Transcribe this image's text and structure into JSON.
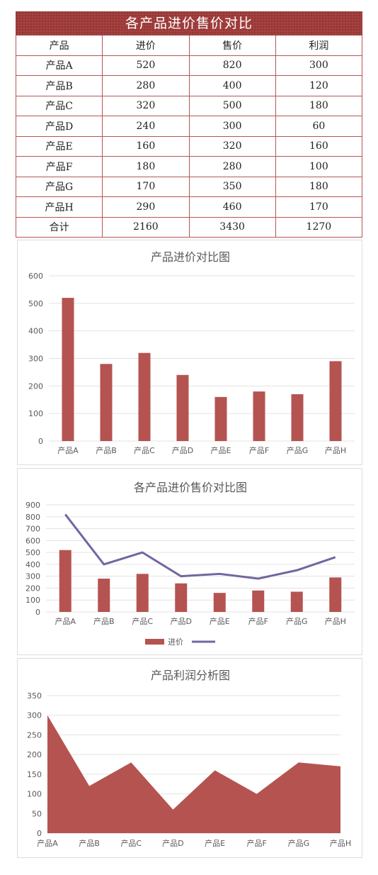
{
  "table": {
    "title": "各产品进价售价对比",
    "headers": [
      "产品",
      "进价",
      "售价",
      "利润"
    ],
    "rows": [
      [
        "产品A",
        "520",
        "820",
        "300"
      ],
      [
        "产品B",
        "280",
        "400",
        "120"
      ],
      [
        "产品C",
        "320",
        "500",
        "180"
      ],
      [
        "产品D",
        "240",
        "300",
        "60"
      ],
      [
        "产品E",
        "160",
        "320",
        "160"
      ],
      [
        "产品F",
        "180",
        "280",
        "100"
      ],
      [
        "产品G",
        "170",
        "350",
        "180"
      ],
      [
        "产品H",
        "290",
        "460",
        "170"
      ]
    ],
    "total": [
      "合计",
      "2160",
      "3430",
      "1270"
    ]
  },
  "colors": {
    "bar": "#b55351",
    "line": "#7266a0",
    "header": "#a5403f"
  },
  "chart_data": [
    {
      "type": "bar",
      "title": "产品进价对比图",
      "categories": [
        "产品A",
        "产品B",
        "产品C",
        "产品D",
        "产品E",
        "产品F",
        "产品G",
        "产品H"
      ],
      "values": [
        520,
        280,
        320,
        240,
        160,
        180,
        170,
        290
      ],
      "ylim": [
        0,
        600
      ],
      "yticks": [
        0,
        100,
        200,
        300,
        400,
        500,
        600
      ],
      "grid": true
    },
    {
      "type": "bar",
      "title": "各产品进价售价对比图",
      "categories": [
        "产品A",
        "产品B",
        "产品C",
        "产品D",
        "产品E",
        "产品F",
        "产品G",
        "产品H"
      ],
      "series": [
        {
          "name": "进价",
          "type": "bar",
          "values": [
            520,
            280,
            320,
            240,
            160,
            180,
            170,
            290
          ]
        },
        {
          "name": "",
          "type": "line",
          "values": [
            820,
            400,
            500,
            300,
            320,
            280,
            350,
            460
          ]
        }
      ],
      "ylim": [
        0,
        900
      ],
      "yticks": [
        0,
        100,
        200,
        300,
        400,
        500,
        600,
        700,
        800,
        900
      ],
      "legend": "bottom",
      "grid": true
    },
    {
      "type": "area",
      "title": "产品利润分析图",
      "categories": [
        "产品A",
        "产品B",
        "产品C",
        "产品D",
        "产品E",
        "产品F",
        "产品G",
        "产品H"
      ],
      "values": [
        300,
        120,
        180,
        60,
        160,
        100,
        180,
        170
      ],
      "ylim": [
        0,
        350
      ],
      "yticks": [
        0,
        50,
        100,
        150,
        200,
        250,
        300,
        350
      ],
      "grid": true
    }
  ]
}
